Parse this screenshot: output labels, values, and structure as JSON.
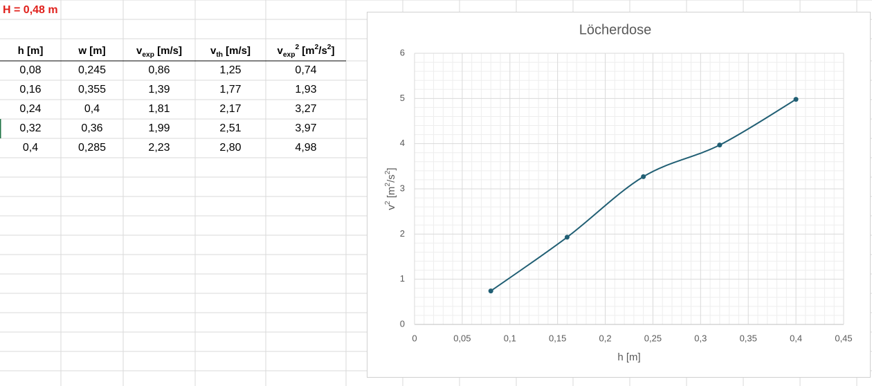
{
  "sheet": {
    "title": "H = 0,48 m",
    "headers": [
      [
        {
          "text": "h [m]"
        }
      ],
      [
        {
          "text": "w [m]"
        }
      ],
      [
        {
          "text": "v"
        },
        {
          "text": "exp",
          "pos": "sub"
        },
        {
          "text": " [m/s]"
        }
      ],
      [
        {
          "text": "v"
        },
        {
          "text": "th",
          "pos": "sub"
        },
        {
          "text": " [m/s]"
        }
      ],
      [
        {
          "text": "v"
        },
        {
          "text": "exp",
          "pos": "sub"
        },
        {
          "text": "2",
          "pos": "sup"
        },
        {
          "text": " [m"
        },
        {
          "text": "2",
          "pos": "sup"
        },
        {
          "text": "/s"
        },
        {
          "text": "2",
          "pos": "sup"
        },
        {
          "text": "]"
        }
      ]
    ],
    "rows": [
      [
        "0,08",
        "0,245",
        "0,86",
        "1,25",
        "0,74"
      ],
      [
        "0,16",
        "0,355",
        "1,39",
        "1,77",
        "1,93"
      ],
      [
        "0,24",
        "0,4",
        "1,81",
        "2,17",
        "3,27"
      ],
      [
        "0,32",
        "0,36",
        "1,99",
        "2,51",
        "3,97"
      ],
      [
        "0,4",
        "0,285",
        "2,23",
        "2,80",
        "4,98"
      ]
    ]
  },
  "chart_data": {
    "type": "line",
    "title": "Löcherdose",
    "x_label": "h [m]",
    "y_label": [
      {
        "text": "v"
      },
      {
        "text": "2",
        "pos": "sup"
      },
      {
        "text": " [m"
      },
      {
        "text": "2",
        "pos": "sup"
      },
      {
        "text": "/s"
      },
      {
        "text": "2",
        "pos": "sup"
      },
      {
        "text": "]"
      }
    ],
    "x": [
      0.08,
      0.16,
      0.24,
      0.32,
      0.4
    ],
    "values": [
      0.74,
      1.93,
      3.27,
      3.97,
      4.98
    ],
    "color": "#215f74",
    "smooth": true,
    "markers": true,
    "xlim": [
      0,
      0.45
    ],
    "xticks": [
      0,
      {
        "value": 0.05,
        "label": "0,05"
      },
      {
        "value": 0.1,
        "label": "0,1"
      },
      {
        "value": 0.15,
        "label": "0,15"
      },
      {
        "value": 0.2,
        "label": "0,2"
      },
      {
        "value": 0.25,
        "label": "0,25"
      },
      {
        "value": 0.3,
        "label": "0,3"
      },
      {
        "value": 0.35,
        "label": "0,35"
      },
      {
        "value": 0.4,
        "label": "0,4"
      },
      {
        "value": 0.45,
        "label": "0,45"
      }
    ],
    "ylim": [
      0,
      6
    ],
    "yticks": [
      0,
      1,
      2,
      3,
      4,
      5,
      6
    ],
    "grid": true,
    "minor_grid_divisions": 5
  }
}
